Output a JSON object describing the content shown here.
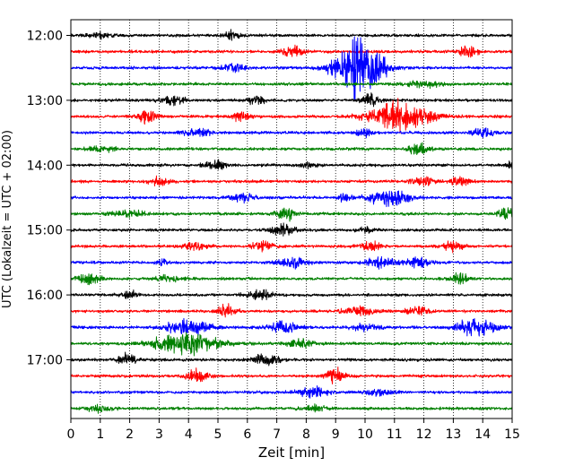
{
  "chart_data": {
    "type": "line",
    "title": "",
    "xlabel": "Zeit  [min]",
    "ylabel": "UTC (Lokalzeit = UTC + 02:00)",
    "xlim": [
      0,
      15
    ],
    "x_ticks": [
      "0",
      "1",
      "2",
      "3",
      "4",
      "5",
      "6",
      "7",
      "8",
      "9",
      "10",
      "11",
      "12",
      "13",
      "14",
      "15"
    ],
    "y_tick_labels": [
      "12:00",
      "13:00",
      "14:00",
      "15:00",
      "16:00",
      "17:00"
    ],
    "grid": "vertical dotted",
    "trace_interval_min": 15,
    "start_time": "12:00",
    "trace_colors": [
      "#000000",
      "#ff0000",
      "#0000ff",
      "#008000"
    ],
    "traces": [
      {
        "start": "12:00",
        "events": [
          {
            "t": 1.0,
            "amp": 0.8,
            "w": 0.3
          },
          {
            "t": 5.5,
            "amp": 1.4,
            "w": 0.2
          }
        ]
      },
      {
        "start": "12:15",
        "events": [
          {
            "t": 7.5,
            "amp": 1.6,
            "w": 0.25
          },
          {
            "t": 13.5,
            "amp": 1.5,
            "w": 0.25
          }
        ]
      },
      {
        "start": "12:30",
        "events": [
          {
            "t": 5.5,
            "amp": 1.2,
            "w": 0.3
          },
          {
            "t": 9.8,
            "amp": 9.5,
            "w": 0.55
          }
        ]
      },
      {
        "start": "12:45",
        "events": [
          {
            "t": 12.0,
            "amp": 1.0,
            "w": 0.4
          }
        ]
      },
      {
        "start": "13:00",
        "events": [
          {
            "t": 3.5,
            "amp": 1.5,
            "w": 0.3
          },
          {
            "t": 6.3,
            "amp": 1.2,
            "w": 0.2
          },
          {
            "t": 10.2,
            "amp": 1.8,
            "w": 0.2
          }
        ]
      },
      {
        "start": "13:15",
        "events": [
          {
            "t": 2.6,
            "amp": 2.0,
            "w": 0.25
          },
          {
            "t": 5.8,
            "amp": 1.5,
            "w": 0.2
          },
          {
            "t": 11.2,
            "amp": 5.0,
            "w": 0.7
          }
        ]
      },
      {
        "start": "13:30",
        "events": [
          {
            "t": 4.3,
            "amp": 1.3,
            "w": 0.3
          },
          {
            "t": 10.0,
            "amp": 1.1,
            "w": 0.2
          },
          {
            "t": 14.0,
            "amp": 1.3,
            "w": 0.3
          }
        ]
      },
      {
        "start": "13:45",
        "events": [
          {
            "t": 1.0,
            "amp": 0.9,
            "w": 0.3
          },
          {
            "t": 11.8,
            "amp": 1.5,
            "w": 0.25
          }
        ]
      },
      {
        "start": "14:00",
        "events": [
          {
            "t": 4.9,
            "amp": 1.7,
            "w": 0.25
          },
          {
            "t": 8.1,
            "amp": 1.0,
            "w": 0.2
          },
          {
            "t": 15.0,
            "amp": 1.5,
            "w": 0.1
          }
        ]
      },
      {
        "start": "14:15",
        "events": [
          {
            "t": 3.0,
            "amp": 1.2,
            "w": 0.25
          },
          {
            "t": 12.0,
            "amp": 1.2,
            "w": 0.3
          },
          {
            "t": 13.2,
            "amp": 1.5,
            "w": 0.2
          }
        ]
      },
      {
        "start": "14:30",
        "events": [
          {
            "t": 5.8,
            "amp": 1.3,
            "w": 0.3
          },
          {
            "t": 9.3,
            "amp": 1.5,
            "w": 0.15
          },
          {
            "t": 10.8,
            "amp": 2.6,
            "w": 0.45
          }
        ]
      },
      {
        "start": "14:45",
        "events": [
          {
            "t": 2.0,
            "amp": 0.9,
            "w": 0.4
          },
          {
            "t": 7.3,
            "amp": 2.0,
            "w": 0.25
          },
          {
            "t": 14.8,
            "amp": 1.7,
            "w": 0.2
          }
        ]
      },
      {
        "start": "15:00",
        "events": [
          {
            "t": 7.2,
            "amp": 2.0,
            "w": 0.3
          },
          {
            "t": 10.0,
            "amp": 0.8,
            "w": 0.2
          }
        ]
      },
      {
        "start": "15:15",
        "events": [
          {
            "t": 4.2,
            "amp": 1.5,
            "w": 0.25
          },
          {
            "t": 6.5,
            "amp": 1.4,
            "w": 0.25
          },
          {
            "t": 10.2,
            "amp": 1.6,
            "w": 0.25
          },
          {
            "t": 13.0,
            "amp": 1.5,
            "w": 0.25
          }
        ]
      },
      {
        "start": "15:30",
        "events": [
          {
            "t": 3.1,
            "amp": 1.8,
            "w": 0.1
          },
          {
            "t": 7.5,
            "amp": 1.6,
            "w": 0.35
          },
          {
            "t": 10.5,
            "amp": 1.5,
            "w": 0.35
          },
          {
            "t": 11.8,
            "amp": 1.6,
            "w": 0.3
          }
        ]
      },
      {
        "start": "15:45",
        "events": [
          {
            "t": 0.6,
            "amp": 1.6,
            "w": 0.3
          },
          {
            "t": 3.3,
            "amp": 1.0,
            "w": 0.3
          },
          {
            "t": 13.2,
            "amp": 1.8,
            "w": 0.2
          }
        ]
      },
      {
        "start": "16:00",
        "events": [
          {
            "t": 2.0,
            "amp": 1.3,
            "w": 0.2
          },
          {
            "t": 6.4,
            "amp": 1.5,
            "w": 0.3
          }
        ]
      },
      {
        "start": "16:15",
        "events": [
          {
            "t": 5.3,
            "amp": 1.8,
            "w": 0.25
          },
          {
            "t": 9.8,
            "amp": 1.5,
            "w": 0.35
          },
          {
            "t": 11.8,
            "amp": 1.4,
            "w": 0.25
          }
        ]
      },
      {
        "start": "16:30",
        "events": [
          {
            "t": 4.0,
            "amp": 2.5,
            "w": 0.5
          },
          {
            "t": 7.2,
            "amp": 1.8,
            "w": 0.35
          },
          {
            "t": 10.0,
            "amp": 1.2,
            "w": 0.3
          },
          {
            "t": 13.8,
            "amp": 2.7,
            "w": 0.45
          }
        ]
      },
      {
        "start": "16:45",
        "events": [
          {
            "t": 3.9,
            "amp": 3.5,
            "w": 0.75
          },
          {
            "t": 7.8,
            "amp": 1.3,
            "w": 0.3
          }
        ]
      },
      {
        "start": "17:00",
        "events": [
          {
            "t": 1.9,
            "amp": 2.0,
            "w": 0.2
          },
          {
            "t": 6.6,
            "amp": 2.0,
            "w": 0.3
          }
        ]
      },
      {
        "start": "17:15",
        "events": [
          {
            "t": 4.3,
            "amp": 2.0,
            "w": 0.25
          },
          {
            "t": 9.0,
            "amp": 2.0,
            "w": 0.25
          }
        ]
      },
      {
        "start": "17:30",
        "events": [
          {
            "t": 8.2,
            "amp": 1.5,
            "w": 0.35
          },
          {
            "t": 10.5,
            "amp": 0.9,
            "w": 0.3
          }
        ]
      },
      {
        "start": "17:45",
        "events": [
          {
            "t": 1.0,
            "amp": 1.0,
            "w": 0.3
          },
          {
            "t": 8.3,
            "amp": 0.9,
            "w": 0.3
          }
        ]
      }
    ]
  }
}
